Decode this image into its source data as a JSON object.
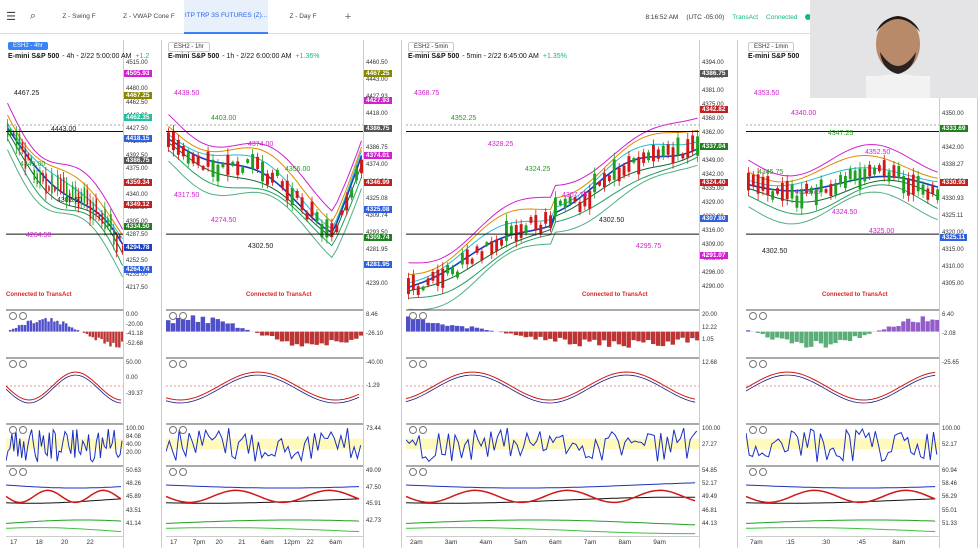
{
  "topbar": {
    "tabs": [
      {
        "label": "Z - Swing F",
        "active": false
      },
      {
        "label": "Z - VWAP Cone F",
        "active": false
      },
      {
        "label": "ITP TRP 3S FUTURES (Z)...",
        "active": true
      },
      {
        "label": "Z - Day F",
        "active": false
      }
    ],
    "time": "8:16:52 AM",
    "timezone": "(UTC -05:00)",
    "transact": "TransAct",
    "connected": "Connected",
    "icons": [
      "hamburger-icon",
      "search-icon",
      "add-tab-icon",
      "save-icon"
    ]
  },
  "charts": [
    {
      "tab": "ESH2 - 4hr",
      "title": "E-mini S&P 500",
      "subtitle": "- 4h - 2/22 5:00:00 AM",
      "change": "+1.2",
      "connected": "Connected to TransAct",
      "prices": [
        "4515.00",
        "4497.50",
        "4480.00",
        "4462.50",
        "4443.00",
        "4427.50",
        "4410.00",
        "4392.50",
        "4375.00",
        "4357.50",
        "4340.00",
        "4322.50",
        "4305.00",
        "4287.50",
        "4270.00",
        "4252.50",
        "4235.00",
        "4217.50"
      ],
      "labels": [
        {
          "text": "4505.93",
          "color": "#d020d0"
        },
        {
          "text": "4467.25",
          "color": "#888800"
        },
        {
          "text": "4462.35",
          "color": "#20c0a0"
        },
        {
          "text": "4418.15",
          "color": "#3060e0"
        },
        {
          "text": "4386.75",
          "color": "#555555"
        },
        {
          "text": "4359.34",
          "color": "#c02020"
        },
        {
          "text": "4349.12",
          "color": "#c02020"
        },
        {
          "text": "4334.50",
          "color": "#208020"
        },
        {
          "text": "4294.78",
          "color": "#2040c0"
        },
        {
          "text": "4264.74",
          "color": "#3060e0"
        }
      ],
      "annotations": [
        {
          "text": "4467.25",
          "color": "#222"
        },
        {
          "text": "4443.00",
          "color": "#222"
        },
        {
          "text": "4349.00",
          "color": "#20a020"
        },
        {
          "text": "4302.50",
          "color": "#222"
        },
        {
          "text": "4264.50",
          "color": "#d020d0"
        }
      ],
      "indicators": [
        {
          "values": [
            "0.00",
            "-20.00",
            "-41.18",
            "-52.68"
          ]
        },
        {
          "values": [
            "50.00",
            "0.00",
            "-39.37"
          ]
        },
        {
          "values": [
            "100.00",
            "84.08",
            "40.00",
            "20.00"
          ]
        },
        {
          "values": [
            "50.63",
            "48.26",
            "45.89",
            "43.51",
            "41.14"
          ]
        }
      ],
      "xlabels": [
        "17",
        "18",
        "20",
        "22"
      ]
    },
    {
      "tab": "ESH2 - 1hr",
      "title": "E-mini S&P 500",
      "subtitle": "- 1h - 2/22 6:00:00 AM",
      "change": "+1.36%",
      "connected": "Connected to TransAct",
      "prices": [
        "4460.50",
        "4443.00",
        "4427.93",
        "4418.00",
        "4401.00",
        "4386.75",
        "4374.00",
        "4346.99",
        "4325.08",
        "4309.74",
        "4293.50",
        "4281.95",
        "4252.00",
        "4239.00"
      ],
      "labels": [
        {
          "text": "4467.25",
          "color": "#888800"
        },
        {
          "text": "4427.93",
          "color": "#d020d0"
        },
        {
          "text": "4386.75",
          "color": "#555555"
        },
        {
          "text": "4374.01",
          "color": "#d020d0"
        },
        {
          "text": "4346.99",
          "color": "#c02020"
        },
        {
          "text": "4325.08",
          "color": "#3060e0"
        },
        {
          "text": "4309.74",
          "color": "#208020"
        },
        {
          "text": "4281.95",
          "color": "#3060e0"
        }
      ],
      "annotations": [
        {
          "text": "4439.50",
          "color": "#d020d0"
        },
        {
          "text": "4403.00",
          "color": "#20a020"
        },
        {
          "text": "4374.00",
          "color": "#d020d0"
        },
        {
          "text": "4356.00",
          "color": "#20a020"
        },
        {
          "text": "4317.50",
          "color": "#d020d0"
        },
        {
          "text": "4274.50",
          "color": "#d020d0"
        },
        {
          "text": "4302.50",
          "color": "#222"
        }
      ],
      "indicators": [
        {
          "values": [
            "8.46",
            "-26.10"
          ]
        },
        {
          "values": [
            "-40.00",
            "-1.29"
          ]
        },
        {
          "values": [
            "73.44"
          ]
        },
        {
          "values": [
            "49.09",
            "47.50",
            "45.91",
            "42.73"
          ]
        }
      ],
      "xlabels": [
        "17",
        "7pm",
        "20",
        "21",
        "6am",
        "12pm",
        "22",
        "6am"
      ]
    },
    {
      "tab": "ESH2 - 5min",
      "title": "E-mini S&P 500",
      "subtitle": "- 5min - 2/22 6:45:00 AM",
      "change": "+1.35%",
      "connected": "Connected to TransAct",
      "prices": [
        "4394.00",
        "4388.00",
        "4381.00",
        "4375.00",
        "4368.00",
        "4362.00",
        "4355.00",
        "4349.00",
        "4342.00",
        "4335.00",
        "4329.00",
        "4322.00",
        "4316.00",
        "4309.00",
        "4303.00",
        "4296.00",
        "4290.00"
      ],
      "labels": [
        {
          "text": "4386.75",
          "color": "#555555"
        },
        {
          "text": "4342.82",
          "color": "#c02020"
        },
        {
          "text": "4337.04",
          "color": "#208020"
        },
        {
          "text": "4324.40",
          "color": "#c02020"
        },
        {
          "text": "4307.80",
          "color": "#3060e0"
        },
        {
          "text": "4291.07",
          "color": "#d020d0"
        }
      ],
      "annotations": [
        {
          "text": "4368.75",
          "color": "#d020d0"
        },
        {
          "text": "4352.25",
          "color": "#20a020"
        },
        {
          "text": "4328.25",
          "color": "#d020d0"
        },
        {
          "text": "4324.25",
          "color": "#20a020"
        },
        {
          "text": "4307.75",
          "color": "#d020d0"
        },
        {
          "text": "4302.50",
          "color": "#222"
        },
        {
          "text": "4295.75",
          "color": "#d020d0"
        }
      ],
      "indicators": [
        {
          "values": [
            "20.00",
            "12.22",
            "1.05"
          ]
        },
        {
          "values": [
            "12.68"
          ]
        },
        {
          "values": [
            "100.00",
            "27.27"
          ]
        },
        {
          "values": [
            "54.85",
            "52.17",
            "49.49",
            "46.81",
            "44.13"
          ]
        }
      ],
      "xlabels": [
        "2am",
        "3am",
        "4am",
        "5am",
        "6am",
        "7am",
        "8am",
        "9am"
      ]
    },
    {
      "tab": "ESH2 - 1min",
      "title": "E-mini S&P 500",
      "subtitle": "",
      "change": "",
      "connected": "Connected to TransAct",
      "prices": [
        "4365.00",
        "4360.00",
        "4355.00",
        "4350.00",
        "4347.00",
        "4342.00",
        "4338.27",
        "4333.69",
        "4330.93",
        "4325.11",
        "4320.00",
        "4315.00",
        "4310.00",
        "4305.00"
      ],
      "labels": [
        {
          "text": "4338.27",
          "color": "#c02020"
        },
        {
          "text": "4333.69",
          "color": "#208020"
        },
        {
          "text": "4330.93",
          "color": "#c02020"
        },
        {
          "text": "4325.11",
          "color": "#3060e0"
        }
      ],
      "annotations": [
        {
          "text": "4353.50",
          "color": "#d020d0"
        },
        {
          "text": "4340.00",
          "color": "#d020d0"
        },
        {
          "text": "4347.25",
          "color": "#20a020"
        },
        {
          "text": "4352.50",
          "color": "#d020d0"
        },
        {
          "text": "4345.75",
          "color": "#20a020"
        },
        {
          "text": "4329.75",
          "color": "#d020d0"
        },
        {
          "text": "4324.50",
          "color": "#d020d0"
        },
        {
          "text": "4325.00",
          "color": "#d020d0"
        },
        {
          "text": "4302.50",
          "color": "#222"
        }
      ],
      "indicators": [
        {
          "values": [
            "6.40",
            "-2.08"
          ]
        },
        {
          "values": [
            "-25.65"
          ]
        },
        {
          "values": [
            "100.00",
            "52.17"
          ]
        },
        {
          "values": [
            "60.94",
            "58.46",
            "56.29",
            "55.01",
            "51.33"
          ]
        }
      ],
      "xlabels": [
        "7am",
        ":15",
        ":30",
        ":45",
        "8am"
      ]
    }
  ]
}
